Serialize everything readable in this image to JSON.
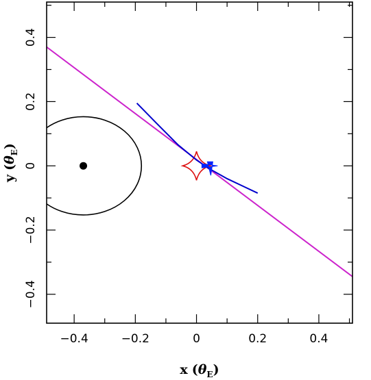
{
  "chart_data": {
    "type": "line",
    "title": "",
    "xlabel": "x",
    "xlabel_symbol": "θ",
    "xlabel_subscript": "E",
    "ylabel": "y",
    "ylabel_symbol": "θ",
    "ylabel_subscript": "E",
    "xlim": [
      -0.49,
      0.51
    ],
    "ylim": [
      -0.49,
      0.51
    ],
    "x_ticks": [
      {
        "value": -0.4,
        "label": "−0.4"
      },
      {
        "value": -0.2,
        "label": "−0.2"
      },
      {
        "value": 0,
        "label": "0"
      },
      {
        "value": 0.2,
        "label": "0.2"
      },
      {
        "value": 0.4,
        "label": "0.4"
      }
    ],
    "y_ticks": [
      {
        "value": -0.4,
        "label": "−0.4"
      },
      {
        "value": -0.2,
        "label": "−0.2"
      },
      {
        "value": 0,
        "label": "0"
      },
      {
        "value": 0.2,
        "label": "0.2"
      },
      {
        "value": 0.4,
        "label": "0.4"
      }
    ],
    "grid": false,
    "series": [
      {
        "kind": "line",
        "color": "#cc22cc",
        "x": [
          -0.49,
          0.51
        ],
        "y": [
          0.37,
          -0.345
        ]
      },
      {
        "kind": "circle",
        "color": "#000000",
        "center": [
          -0.37,
          0.0
        ],
        "radius_x": 0.19,
        "radius_y": 0.153
      },
      {
        "kind": "point",
        "color": "#000000",
        "x": [
          -0.37
        ],
        "y": [
          0.0
        ]
      },
      {
        "kind": "caustic",
        "color": "#dd1111",
        "center": [
          0.0,
          0.0
        ],
        "half_width": 0.045,
        "half_height": 0.045
      },
      {
        "kind": "curve",
        "color": "#0000cc",
        "x": [
          -0.195,
          -0.13,
          -0.06,
          0.0,
          0.04,
          0.1,
          0.16,
          0.2
        ],
        "y": [
          0.195,
          0.132,
          0.065,
          0.018,
          -0.008,
          -0.04,
          -0.067,
          -0.085
        ]
      },
      {
        "kind": "marker",
        "color": "#0022ff",
        "x": [
          0.04
        ],
        "y": [
          0.0
        ]
      }
    ]
  }
}
